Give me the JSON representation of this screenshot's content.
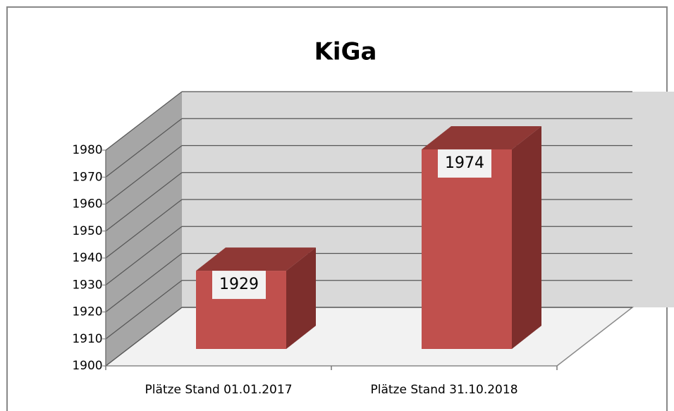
{
  "chart_data": {
    "type": "bar3d",
    "title": "KiGa",
    "categories": [
      "Plätze Stand 01.01.2017",
      "Plätze Stand 31.10.2018"
    ],
    "values": [
      1929,
      1974
    ],
    "color": "#c0504d",
    "ylim": [
      1900,
      1980
    ],
    "yticks": [
      1900,
      1910,
      1920,
      1930,
      1940,
      1950,
      1960,
      1970,
      1980
    ],
    "grid": true
  }
}
